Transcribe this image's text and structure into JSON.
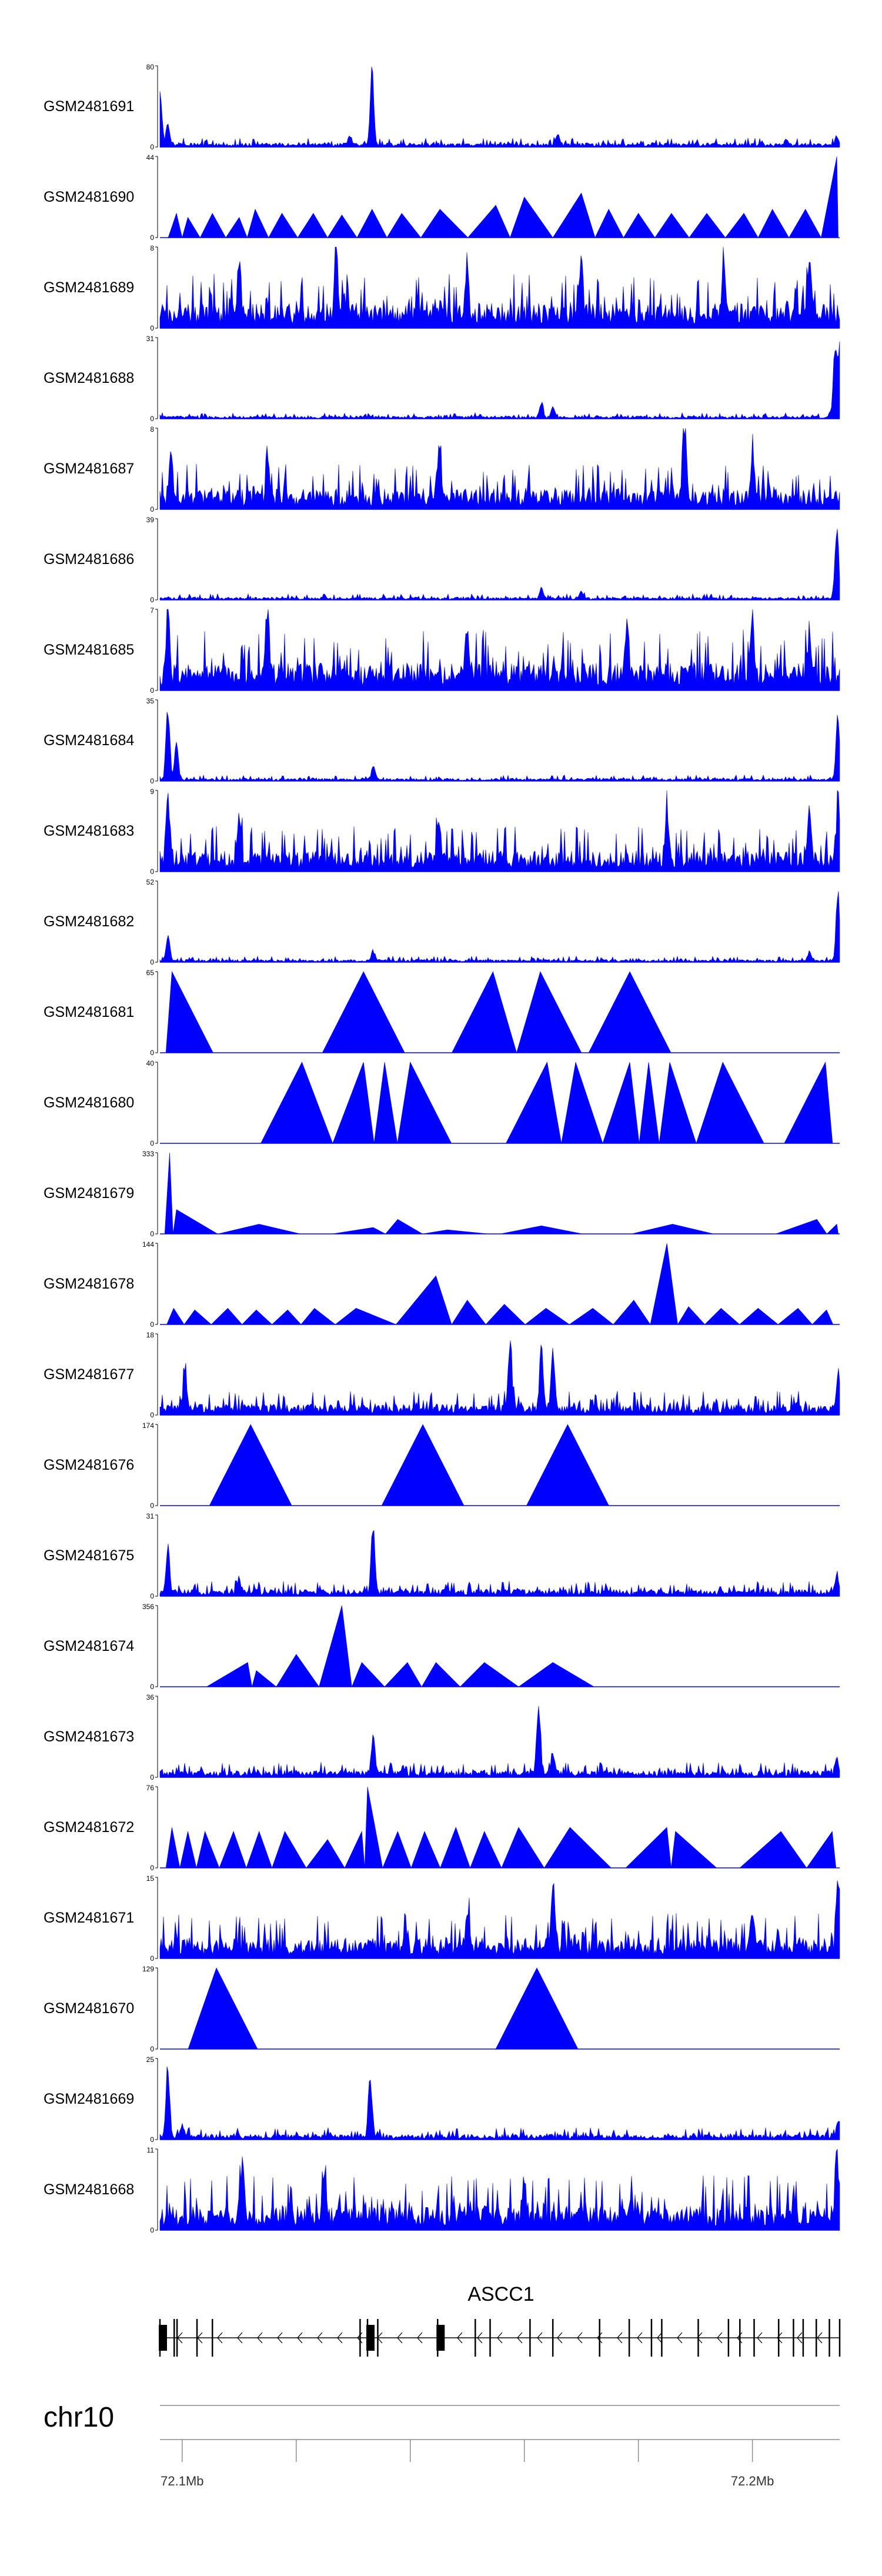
{
  "chart_data": {
    "type": "area",
    "title": "",
    "chromosome": "chr10",
    "x_unit": "Mb",
    "xlim": [
      72.0961,
      72.2153
    ],
    "ruler_ticks": [
      {
        "pos": 72.1,
        "label": "72.1Mb"
      },
      {
        "pos": 72.12,
        "label": ""
      },
      {
        "pos": 72.14,
        "label": ""
      },
      {
        "pos": 72.16,
        "label": ""
      },
      {
        "pos": 72.18,
        "label": ""
      },
      {
        "pos": 72.2,
        "label": "72.2Mb"
      }
    ],
    "gene": {
      "name": "ASCC1",
      "strand": "-",
      "start": 72.0961,
      "end": 72.2153,
      "exons": [
        72.0961,
        72.0986,
        72.0991,
        72.1026,
        72.1053,
        72.1312,
        72.1325,
        72.1343,
        72.1448,
        72.1514,
        72.154,
        72.161,
        72.165,
        72.1732,
        72.1784,
        72.1823,
        72.1841,
        72.1905,
        72.1958,
        72.1978,
        72.2003,
        72.2046,
        72.2072,
        72.2089,
        72.2112,
        72.2135,
        72.2153
      ],
      "utr_blocks": [
        72.0961,
        72.1325,
        72.1448
      ]
    },
    "series": [
      {
        "name": "GSM2481691",
        "ymax": 80,
        "style": "dense",
        "peaks": [
          [
            72.0961,
            0.8
          ],
          [
            72.0975,
            0.3
          ],
          [
            72.1333,
            1.0
          ],
          [
            72.1295,
            0.12
          ],
          [
            72.1658,
            0.15
          ],
          [
            72.206,
            0.08
          ],
          [
            72.2148,
            0.12
          ]
        ],
        "base": 0.03,
        "seed": 1
      },
      {
        "name": "GSM2481690",
        "ymax": 44,
        "style": "triangles",
        "peaks": [
          [
            72.099,
            0.3
          ],
          [
            72.101,
            0.25
          ],
          [
            72.1053,
            0.3
          ],
          [
            72.11,
            0.25
          ],
          [
            72.1128,
            0.35
          ],
          [
            72.1175,
            0.3
          ],
          [
            72.123,
            0.3
          ],
          [
            72.128,
            0.28
          ],
          [
            72.1333,
            0.35
          ],
          [
            72.1385,
            0.3
          ],
          [
            72.1452,
            0.35
          ],
          [
            72.155,
            0.4
          ],
          [
            72.16,
            0.5
          ],
          [
            72.17,
            0.55
          ],
          [
            72.1748,
            0.35
          ],
          [
            72.18,
            0.3
          ],
          [
            72.1858,
            0.3
          ],
          [
            72.192,
            0.3
          ],
          [
            72.1985,
            0.3
          ],
          [
            72.2035,
            0.35
          ],
          [
            72.2093,
            0.35
          ],
          [
            72.2148,
            1.0
          ]
        ],
        "base": 0.0,
        "seed": 2
      },
      {
        "name": "GSM2481689",
        "ymax": 8,
        "style": "dense",
        "peaks": [
          [
            72.127,
            1.0
          ],
          [
            72.11,
            0.7
          ],
          [
            72.17,
            0.8
          ],
          [
            72.195,
            0.65
          ],
          [
            72.21,
            0.7
          ],
          [
            72.15,
            0.6
          ]
        ],
        "base": 0.18,
        "seed": 3
      },
      {
        "name": "GSM2481688",
        "ymax": 31,
        "style": "dense",
        "peaks": [
          [
            72.163,
            0.2
          ],
          [
            72.165,
            0.15
          ],
          [
            72.2145,
            1.0
          ],
          [
            72.2153,
            0.9
          ]
        ],
        "base": 0.02,
        "seed": 4
      },
      {
        "name": "GSM2481687",
        "ymax": 8,
        "style": "dense",
        "peaks": [
          [
            72.188,
            1.0
          ],
          [
            72.145,
            0.7
          ],
          [
            72.098,
            0.65
          ],
          [
            72.115,
            0.6
          ],
          [
            72.2,
            0.6
          ]
        ],
        "base": 0.15,
        "seed": 5
      },
      {
        "name": "GSM2481686",
        "ymax": 39,
        "style": "dense",
        "peaks": [
          [
            72.163,
            0.15
          ],
          [
            72.17,
            0.1
          ],
          [
            72.2148,
            1.0
          ]
        ],
        "base": 0.02,
        "seed": 6
      },
      {
        "name": "GSM2481685",
        "ymax": 7,
        "style": "dense",
        "peaks": [
          [
            72.0975,
            1.0
          ],
          [
            72.115,
            0.7
          ],
          [
            72.15,
            0.6
          ],
          [
            72.178,
            0.7
          ],
          [
            72.2,
            0.75
          ],
          [
            72.21,
            0.6
          ]
        ],
        "base": 0.2,
        "seed": 7
      },
      {
        "name": "GSM2481684",
        "ymax": 35,
        "style": "dense",
        "peaks": [
          [
            72.0975,
            1.0
          ],
          [
            72.099,
            0.5
          ],
          [
            72.1335,
            0.2
          ],
          [
            72.215,
            0.95
          ]
        ],
        "base": 0.02,
        "seed": 8
      },
      {
        "name": "GSM2481683",
        "ymax": 9,
        "style": "dense",
        "peaks": [
          [
            72.0975,
            0.85
          ],
          [
            72.11,
            0.6
          ],
          [
            72.145,
            0.55
          ],
          [
            72.185,
            0.6
          ],
          [
            72.21,
            0.75
          ],
          [
            72.215,
            0.8
          ]
        ],
        "base": 0.15,
        "seed": 9
      },
      {
        "name": "GSM2481682",
        "ymax": 52,
        "style": "dense",
        "peaks": [
          [
            72.0975,
            0.35
          ],
          [
            72.1335,
            0.1
          ],
          [
            72.21,
            0.12
          ],
          [
            72.215,
            1.0
          ]
        ],
        "base": 0.02,
        "seed": 10
      },
      {
        "name": "GSM2481681",
        "ymax": 65,
        "style": "triangles",
        "peaks": [
          [
            72.0982,
            1.0
          ],
          [
            72.1318,
            1.0
          ],
          [
            72.1545,
            1.0
          ],
          [
            72.1628,
            1.0
          ],
          [
            72.1785,
            1.0
          ]
        ],
        "base": 0.0,
        "seed": 11
      },
      {
        "name": "GSM2481680",
        "ymax": 40,
        "style": "triangles",
        "peaks": [
          [
            72.121,
            1.0
          ],
          [
            72.1318,
            1.0
          ],
          [
            72.1355,
            1.0
          ],
          [
            72.14,
            1.0
          ],
          [
            72.164,
            1.0
          ],
          [
            72.169,
            1.0
          ],
          [
            72.1785,
            1.0
          ],
          [
            72.1818,
            1.0
          ],
          [
            72.1855,
            1.0
          ],
          [
            72.1948,
            1.0
          ],
          [
            72.2128,
            1.0
          ]
        ],
        "base": 0.0,
        "seed": 12
      },
      {
        "name": "GSM2481679",
        "ymax": 333,
        "style": "triangles",
        "peaks": [
          [
            72.0978,
            1.0
          ],
          [
            72.099,
            0.3
          ],
          [
            72.1135,
            0.12
          ],
          [
            72.1335,
            0.08
          ],
          [
            72.1378,
            0.18
          ],
          [
            72.1465,
            0.05
          ],
          [
            72.163,
            0.1
          ],
          [
            72.186,
            0.12
          ],
          [
            72.2113,
            0.18
          ],
          [
            72.2148,
            0.12
          ]
        ],
        "base": 0.0,
        "seed": 13
      },
      {
        "name": "GSM2481678",
        "ymax": 144,
        "style": "triangles",
        "peaks": [
          [
            72.0985,
            0.2
          ],
          [
            72.1022,
            0.18
          ],
          [
            72.108,
            0.2
          ],
          [
            72.113,
            0.18
          ],
          [
            72.1185,
            0.18
          ],
          [
            72.1232,
            0.2
          ],
          [
            72.1305,
            0.2
          ],
          [
            72.1445,
            0.6
          ],
          [
            72.15,
            0.3
          ],
          [
            72.1565,
            0.25
          ],
          [
            72.1638,
            0.2
          ],
          [
            72.172,
            0.2
          ],
          [
            72.1792,
            0.3
          ],
          [
            72.185,
            1.0
          ],
          [
            72.1888,
            0.22
          ],
          [
            72.1945,
            0.2
          ],
          [
            72.201,
            0.2
          ],
          [
            72.208,
            0.2
          ],
          [
            72.213,
            0.18
          ]
        ],
        "base": 0.0,
        "seed": 14
      },
      {
        "name": "GSM2481677",
        "ymax": 18,
        "style": "dense",
        "peaks": [
          [
            72.1005,
            0.5
          ],
          [
            72.1575,
            1.0
          ],
          [
            72.163,
            0.8
          ],
          [
            72.165,
            0.75
          ],
          [
            72.215,
            0.5
          ]
        ],
        "base": 0.08,
        "seed": 15
      },
      {
        "name": "GSM2481676",
        "ymax": 174,
        "style": "triangles",
        "peaks": [
          [
            72.112,
            1.0
          ],
          [
            72.1422,
            1.0
          ],
          [
            72.1676,
            1.0
          ]
        ],
        "base": 0.0,
        "seed": 16
      },
      {
        "name": "GSM2481675",
        "ymax": 31,
        "style": "dense",
        "peaks": [
          [
            72.0975,
            0.6
          ],
          [
            72.1335,
            1.0
          ],
          [
            72.11,
            0.2
          ],
          [
            72.2148,
            0.25
          ]
        ],
        "base": 0.05,
        "seed": 17
      },
      {
        "name": "GSM2481674",
        "ymax": 356,
        "style": "triangles",
        "peaks": [
          [
            72.1115,
            0.3
          ],
          [
            72.113,
            0.2
          ],
          [
            72.12,
            0.4
          ],
          [
            72.128,
            1.0
          ],
          [
            72.1315,
            0.3
          ],
          [
            72.1395,
            0.3
          ],
          [
            72.1445,
            0.3
          ],
          [
            72.153,
            0.3
          ],
          [
            72.165,
            0.3
          ]
        ],
        "base": 0.0,
        "seed": 18
      },
      {
        "name": "GSM2481673",
        "ymax": 36,
        "style": "dense",
        "peaks": [
          [
            72.1335,
            0.6
          ],
          [
            72.1625,
            1.0
          ],
          [
            72.165,
            0.3
          ],
          [
            72.2148,
            0.2
          ]
        ],
        "base": 0.05,
        "seed": 19
      },
      {
        "name": "GSM2481672",
        "ymax": 76,
        "style": "triangles",
        "peaks": [
          [
            72.0982,
            0.5
          ],
          [
            72.101,
            0.45
          ],
          [
            72.104,
            0.45
          ],
          [
            72.109,
            0.45
          ],
          [
            72.1135,
            0.45
          ],
          [
            72.118,
            0.45
          ],
          [
            72.1255,
            0.35
          ],
          [
            72.1315,
            0.45
          ],
          [
            72.1325,
            1.0
          ],
          [
            72.1378,
            0.45
          ],
          [
            72.1425,
            0.45
          ],
          [
            72.148,
            0.5
          ],
          [
            72.153,
            0.45
          ],
          [
            72.159,
            0.5
          ],
          [
            72.168,
            0.5
          ],
          [
            72.185,
            0.5
          ],
          [
            72.1865,
            0.45
          ],
          [
            72.205,
            0.45
          ],
          [
            72.214,
            0.45
          ]
        ],
        "base": 0.0,
        "seed": 20
      },
      {
        "name": "GSM2481671",
        "ymax": 15,
        "style": "dense",
        "peaks": [
          [
            72.165,
            0.9
          ],
          [
            72.215,
            1.0
          ],
          [
            72.15,
            0.6
          ],
          [
            72.2,
            0.5
          ]
        ],
        "base": 0.15,
        "seed": 21
      },
      {
        "name": "GSM2481670",
        "ymax": 129,
        "style": "triangles",
        "peaks": [
          [
            72.106,
            1.0
          ],
          [
            72.1622,
            1.0
          ]
        ],
        "base": 0.0,
        "seed": 22
      },
      {
        "name": "GSM2481669",
        "ymax": 25,
        "style": "dense",
        "peaks": [
          [
            72.0975,
            1.0
          ],
          [
            72.133,
            0.85
          ],
          [
            72.1,
            0.15
          ],
          [
            72.215,
            0.2
          ]
        ],
        "base": 0.04,
        "seed": 23
      },
      {
        "name": "GSM2481668",
        "ymax": 11,
        "style": "dense",
        "peaks": [
          [
            72.1105,
            0.8
          ],
          [
            72.125,
            0.7
          ],
          [
            72.2148,
            1.0
          ],
          [
            72.16,
            0.6
          ]
        ],
        "base": 0.18,
        "seed": 24
      }
    ]
  }
}
